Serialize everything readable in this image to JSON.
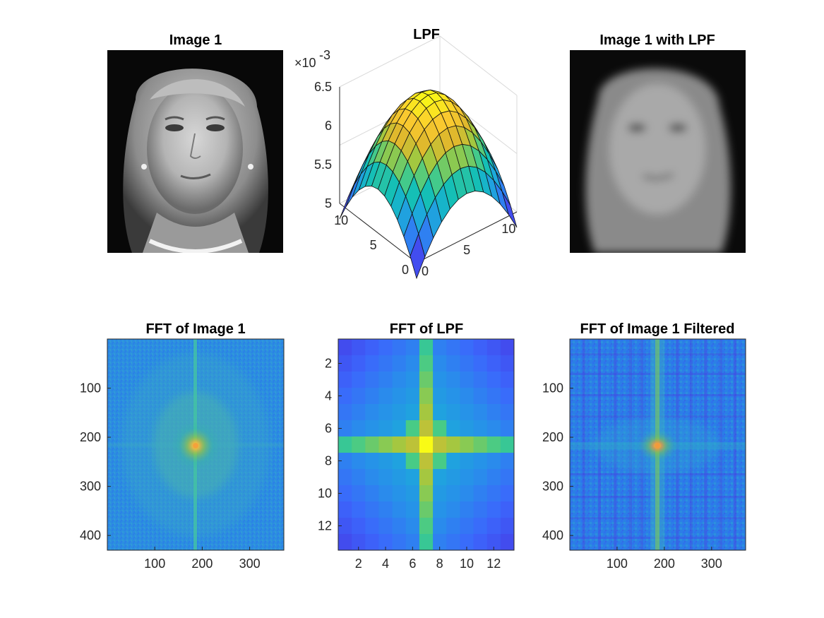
{
  "chart_data": [
    {
      "type": "image",
      "title": "Image 1",
      "content": "grayscale portrait photograph of a woman",
      "axes_visible": false
    },
    {
      "type": "surface",
      "title": "LPF",
      "x": [
        0,
        1,
        2,
        3,
        4,
        5,
        6,
        7,
        8,
        9,
        10,
        11,
        12
      ],
      "y": [
        0,
        1,
        2,
        3,
        4,
        5,
        6,
        7,
        8,
        9,
        10,
        11,
        12
      ],
      "z_function": "2-D separable Gaussian low-pass kernel, 13x13",
      "z_center": 0.00645,
      "z_corner": 0.0048,
      "zlim": [
        0.005,
        0.0065
      ],
      "z_exponent_label": "×10",
      "z_exponent": "-3",
      "z_ticks": [
        "5",
        "5.5",
        "6",
        "6.5"
      ],
      "x_ticks": [
        "0",
        "5",
        "10"
      ],
      "y_ticks": [
        "0",
        "5",
        "10"
      ],
      "colormap": "parula",
      "grid": true
    },
    {
      "type": "image",
      "title": "Image 1 with LPF",
      "content": "blurred grayscale portrait (low-pass filtered)",
      "axes_visible": false
    },
    {
      "type": "heatmap",
      "title": "FFT of Image 1",
      "size": [
        430,
        372
      ],
      "x_ticks": [
        "100",
        "200",
        "300"
      ],
      "y_ticks": [
        "100",
        "200",
        "300",
        "400"
      ],
      "peak": [
        187,
        216
      ],
      "colormap": "parula"
    },
    {
      "type": "heatmap",
      "title": "FFT of LPF",
      "size": [
        13,
        13
      ],
      "x_ticks": [
        "2",
        "4",
        "6",
        "8",
        "10",
        "12"
      ],
      "y_ticks": [
        "2",
        "4",
        "6",
        "8",
        "10",
        "12"
      ],
      "peak": [
        7,
        7
      ],
      "colormap": "parula"
    },
    {
      "type": "heatmap",
      "title": "FFT of Image 1 Filtered",
      "size": [
        430,
        372
      ],
      "x_ticks": [
        "100",
        "200",
        "300"
      ],
      "y_ticks": [
        "100",
        "200",
        "300",
        "400"
      ],
      "peak": [
        187,
        216
      ],
      "colormap": "parula"
    }
  ]
}
